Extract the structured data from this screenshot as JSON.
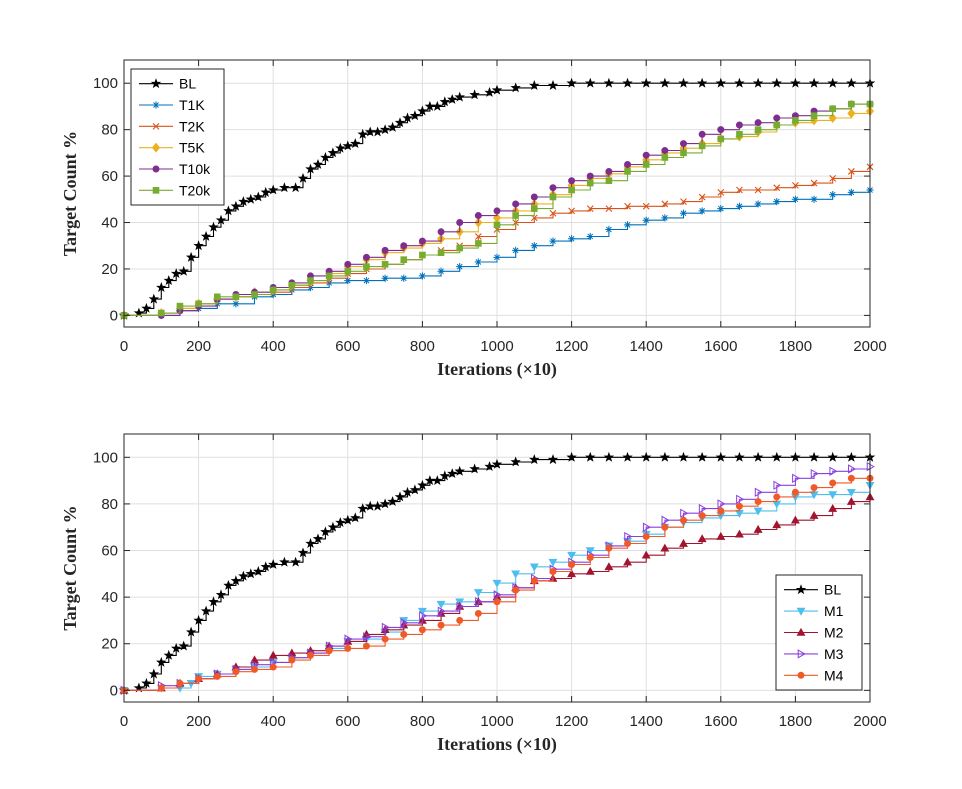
{
  "chart_data": [
    {
      "type": "line",
      "title": "",
      "xlabel": "Iterations (×10)",
      "ylabel": "Target Count %",
      "xlim": [
        0,
        2000
      ],
      "ylim": [
        -5,
        110
      ],
      "xticks": [
        0,
        200,
        400,
        600,
        800,
        1000,
        1200,
        1400,
        1600,
        1800,
        2000
      ],
      "yticks": [
        0,
        20,
        40,
        60,
        80,
        100
      ],
      "grid": true,
      "legend_position": "top-left",
      "series": [
        {
          "name": "BL",
          "color": "#000000",
          "marker": "star",
          "x": [
            0,
            40,
            60,
            80,
            100,
            120,
            140,
            160,
            180,
            200,
            220,
            240,
            260,
            280,
            300,
            320,
            340,
            360,
            380,
            400,
            430,
            460,
            480,
            500,
            520,
            540,
            560,
            580,
            600,
            620,
            640,
            660,
            680,
            700,
            720,
            740,
            760,
            780,
            800,
            820,
            840,
            860,
            880,
            900,
            940,
            980,
            1000,
            1050,
            1100,
            1150,
            1200,
            1250,
            1300,
            1350,
            1400,
            1450,
            1500,
            1550,
            1600,
            1650,
            1700,
            1750,
            1800,
            1850,
            1900,
            1950,
            2000
          ],
          "y": [
            0,
            1,
            3,
            7,
            12,
            15,
            18,
            19,
            25,
            30,
            34,
            38,
            41,
            45,
            47,
            49,
            50,
            51,
            53,
            54,
            55,
            55,
            59,
            63,
            65,
            68,
            70,
            72,
            73,
            74,
            78,
            79,
            79,
            80,
            81,
            83,
            85,
            86,
            88,
            90,
            90,
            92,
            93,
            94,
            95,
            96,
            97,
            98,
            99,
            99,
            100,
            100,
            100,
            100,
            100,
            100,
            100,
            100,
            100,
            100,
            100,
            100,
            100,
            100,
            100,
            100,
            100
          ]
        },
        {
          "name": "T1K",
          "color": "#0072BD",
          "marker": "asterisk",
          "x": [
            0,
            100,
            150,
            200,
            250,
            300,
            350,
            400,
            450,
            500,
            550,
            600,
            650,
            700,
            750,
            800,
            850,
            900,
            950,
            1000,
            1050,
            1100,
            1150,
            1200,
            1250,
            1300,
            1350,
            1400,
            1450,
            1500,
            1550,
            1600,
            1650,
            1700,
            1750,
            1800,
            1850,
            1900,
            1950,
            2000
          ],
          "y": [
            0,
            0,
            2,
            3,
            5,
            5,
            8,
            9,
            11,
            12,
            14,
            15,
            15,
            16,
            16,
            17,
            19,
            21,
            23,
            25,
            28,
            30,
            32,
            33,
            34,
            37,
            39,
            41,
            42,
            44,
            45,
            46,
            47,
            48,
            49,
            50,
            50,
            52,
            53,
            54
          ]
        },
        {
          "name": "T2K",
          "color": "#D95319",
          "marker": "cross",
          "x": [
            0,
            100,
            150,
            200,
            250,
            300,
            350,
            400,
            450,
            500,
            550,
            600,
            650,
            700,
            750,
            800,
            850,
            900,
            950,
            1000,
            1050,
            1100,
            1150,
            1200,
            1250,
            1300,
            1350,
            1400,
            1450,
            1500,
            1550,
            1600,
            1650,
            1700,
            1750,
            1800,
            1850,
            1900,
            1950,
            2000
          ],
          "y": [
            0,
            1,
            3,
            5,
            7,
            8,
            9,
            10,
            12,
            14,
            16,
            18,
            20,
            22,
            24,
            26,
            28,
            30,
            34,
            37,
            40,
            42,
            44,
            45,
            46,
            46,
            47,
            47,
            48,
            49,
            51,
            53,
            54,
            54,
            55,
            56,
            57,
            59,
            62,
            64
          ]
        },
        {
          "name": "T5K",
          "color": "#EDB120",
          "marker": "diamond",
          "x": [
            0,
            100,
            150,
            200,
            250,
            300,
            350,
            400,
            450,
            500,
            550,
            600,
            650,
            700,
            750,
            800,
            850,
            900,
            950,
            1000,
            1050,
            1100,
            1150,
            1200,
            1250,
            1300,
            1350,
            1400,
            1450,
            1500,
            1550,
            1600,
            1650,
            1700,
            1750,
            1800,
            1850,
            1900,
            1950,
            2000
          ],
          "y": [
            0,
            1,
            3,
            5,
            7,
            8,
            10,
            11,
            13,
            15,
            18,
            21,
            24,
            27,
            29,
            31,
            33,
            36,
            40,
            42,
            45,
            48,
            52,
            56,
            59,
            61,
            64,
            67,
            70,
            72,
            74,
            76,
            77,
            79,
            82,
            83,
            84,
            85,
            87,
            88
          ]
        },
        {
          "name": "T10k",
          "color": "#7E2F8E",
          "marker": "circle",
          "x": [
            0,
            100,
            150,
            200,
            250,
            300,
            350,
            400,
            450,
            500,
            550,
            600,
            650,
            700,
            750,
            800,
            850,
            900,
            950,
            1000,
            1050,
            1100,
            1150,
            1200,
            1250,
            1300,
            1350,
            1400,
            1450,
            1500,
            1550,
            1600,
            1650,
            1700,
            1750,
            1800,
            1850,
            1900,
            1950,
            2000
          ],
          "y": [
            0,
            0,
            2,
            4,
            7,
            9,
            10,
            12,
            14,
            17,
            19,
            22,
            25,
            28,
            30,
            32,
            36,
            40,
            43,
            45,
            48,
            51,
            55,
            58,
            60,
            62,
            65,
            69,
            71,
            74,
            78,
            80,
            82,
            83,
            85,
            86,
            88,
            89,
            91,
            91
          ]
        },
        {
          "name": "T20k",
          "color": "#77AC30",
          "marker": "square",
          "x": [
            0,
            100,
            150,
            200,
            250,
            300,
            350,
            400,
            450,
            500,
            550,
            600,
            650,
            700,
            750,
            800,
            850,
            900,
            950,
            1000,
            1050,
            1100,
            1150,
            1200,
            1250,
            1300,
            1350,
            1400,
            1450,
            1500,
            1550,
            1600,
            1650,
            1700,
            1750,
            1800,
            1850,
            1900,
            1950,
            2000
          ],
          "y": [
            0,
            1,
            4,
            5,
            8,
            8,
            9,
            11,
            13,
            15,
            17,
            19,
            21,
            22,
            24,
            26,
            27,
            29,
            31,
            39,
            43,
            46,
            51,
            54,
            57,
            58,
            62,
            65,
            68,
            70,
            73,
            76,
            78,
            80,
            82,
            84,
            86,
            89,
            91,
            91
          ]
        }
      ]
    },
    {
      "type": "line",
      "title": "",
      "xlabel": "Iterations (×10)",
      "ylabel": "Target Count %",
      "xlim": [
        0,
        2000
      ],
      "ylim": [
        -5,
        110
      ],
      "xticks": [
        0,
        200,
        400,
        600,
        800,
        1000,
        1200,
        1400,
        1600,
        1800,
        2000
      ],
      "yticks": [
        0,
        20,
        40,
        60,
        80,
        100
      ],
      "grid": true,
      "legend_position": "bottom-right",
      "series": [
        {
          "name": "BL",
          "color": "#000000",
          "marker": "star",
          "x": [
            0,
            40,
            60,
            80,
            100,
            120,
            140,
            160,
            180,
            200,
            220,
            240,
            260,
            280,
            300,
            320,
            340,
            360,
            380,
            400,
            430,
            460,
            480,
            500,
            520,
            540,
            560,
            580,
            600,
            620,
            640,
            660,
            680,
            700,
            720,
            740,
            760,
            780,
            800,
            820,
            840,
            860,
            880,
            900,
            940,
            980,
            1000,
            1050,
            1100,
            1150,
            1200,
            1250,
            1300,
            1350,
            1400,
            1450,
            1500,
            1550,
            1600,
            1650,
            1700,
            1750,
            1800,
            1850,
            1900,
            1950,
            2000
          ],
          "y": [
            0,
            1,
            3,
            7,
            12,
            15,
            18,
            19,
            25,
            30,
            34,
            38,
            41,
            45,
            47,
            49,
            50,
            51,
            53,
            54,
            55,
            55,
            59,
            63,
            65,
            68,
            70,
            72,
            73,
            74,
            78,
            79,
            79,
            80,
            81,
            83,
            85,
            86,
            88,
            90,
            90,
            92,
            93,
            94,
            95,
            96,
            97,
            98,
            99,
            99,
            100,
            100,
            100,
            100,
            100,
            100,
            100,
            100,
            100,
            100,
            100,
            100,
            100,
            100,
            100,
            100,
            100
          ]
        },
        {
          "name": "M1",
          "color": "#4DBEEE",
          "marker": "triangle-down",
          "x": [
            0,
            100,
            150,
            180,
            200,
            250,
            300,
            350,
            400,
            450,
            500,
            550,
            600,
            650,
            700,
            750,
            800,
            850,
            900,
            950,
            1000,
            1050,
            1100,
            1150,
            1200,
            1250,
            1300,
            1350,
            1400,
            1450,
            1500,
            1550,
            1600,
            1650,
            1700,
            1750,
            1800,
            1850,
            1900,
            1950,
            2000
          ],
          "y": [
            0,
            1,
            1,
            3,
            6,
            7,
            9,
            10,
            12,
            14,
            16,
            18,
            21,
            22,
            25,
            30,
            34,
            37,
            38,
            42,
            46,
            50,
            53,
            55,
            58,
            60,
            62,
            64,
            67,
            70,
            72,
            74,
            75,
            76,
            77,
            80,
            83,
            84,
            84,
            85,
            88
          ]
        },
        {
          "name": "M2",
          "color": "#A2142F",
          "marker": "triangle-up",
          "x": [
            0,
            100,
            150,
            200,
            250,
            300,
            350,
            400,
            450,
            500,
            550,
            600,
            650,
            700,
            750,
            800,
            850,
            900,
            950,
            1000,
            1050,
            1100,
            1150,
            1200,
            1250,
            1300,
            1350,
            1400,
            1450,
            1500,
            1550,
            1600,
            1650,
            1700,
            1750,
            1800,
            1850,
            1900,
            1950,
            2000
          ],
          "y": [
            0,
            1,
            3,
            5,
            7,
            10,
            13,
            15,
            16,
            17,
            19,
            21,
            24,
            26,
            28,
            30,
            33,
            36,
            38,
            40,
            44,
            47,
            48,
            50,
            51,
            53,
            55,
            58,
            61,
            63,
            65,
            66,
            67,
            69,
            71,
            73,
            75,
            78,
            81,
            83
          ]
        },
        {
          "name": "M3",
          "color": "#8A3FE0",
          "marker": "triangle-right",
          "x": [
            0,
            100,
            150,
            200,
            250,
            300,
            350,
            400,
            450,
            500,
            550,
            600,
            650,
            700,
            750,
            800,
            850,
            900,
            950,
            1000,
            1050,
            1100,
            1150,
            1200,
            1250,
            1300,
            1350,
            1400,
            1450,
            1500,
            1550,
            1600,
            1650,
            1700,
            1750,
            1800,
            1850,
            1900,
            1950,
            2000
          ],
          "y": [
            0,
            2,
            3,
            5,
            7,
            9,
            11,
            12,
            14,
            16,
            19,
            22,
            23,
            27,
            29,
            32,
            34,
            36,
            38,
            41,
            44,
            48,
            52,
            55,
            58,
            62,
            66,
            70,
            73,
            76,
            78,
            80,
            82,
            85,
            88,
            91,
            93,
            94,
            95,
            96
          ]
        },
        {
          "name": "M4",
          "color": "#F05A28",
          "marker": "circle",
          "x": [
            0,
            100,
            150,
            200,
            250,
            300,
            350,
            400,
            450,
            500,
            550,
            600,
            650,
            700,
            750,
            800,
            850,
            900,
            950,
            1000,
            1050,
            1100,
            1150,
            1200,
            1250,
            1300,
            1350,
            1400,
            1450,
            1500,
            1550,
            1600,
            1650,
            1700,
            1750,
            1800,
            1850,
            1900,
            1950,
            2000
          ],
          "y": [
            0,
            1,
            3,
            5,
            6,
            8,
            9,
            10,
            13,
            15,
            17,
            18,
            19,
            22,
            24,
            26,
            28,
            30,
            33,
            38,
            43,
            47,
            51,
            54,
            57,
            61,
            63,
            66,
            70,
            73,
            75,
            77,
            79,
            81,
            83,
            85,
            87,
            89,
            91,
            91
          ]
        }
      ]
    }
  ]
}
